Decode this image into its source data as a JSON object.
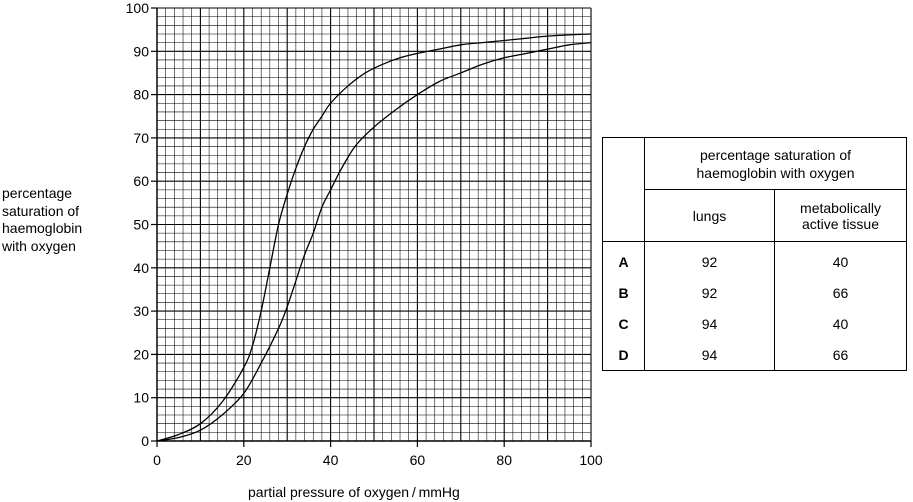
{
  "chart_data": {
    "type": "line",
    "title": "",
    "xlabel": "partial pressure of oxygen / mmHg",
    "ylabel_lines": [
      "percentage",
      "saturation of",
      "haemoglobin",
      "with oxygen"
    ],
    "xlim": [
      0,
      100
    ],
    "ylim": [
      0,
      100
    ],
    "x_ticks": [
      0,
      20,
      40,
      60,
      80,
      100
    ],
    "y_ticks": [
      0,
      10,
      20,
      30,
      40,
      50,
      60,
      70,
      80,
      90,
      100
    ],
    "grid": true,
    "minor_grid_step": 2,
    "series": [
      {
        "x": [
          0,
          5,
          10,
          15,
          20,
          22,
          24,
          26,
          28,
          30,
          32,
          34,
          36,
          38,
          40,
          44,
          48,
          52,
          56,
          60,
          65,
          70,
          75,
          80,
          85,
          90,
          95,
          100
        ],
        "y": [
          0,
          1.5,
          4,
          9,
          17,
          22,
          30,
          40,
          50,
          57,
          63,
          68,
          72,
          75,
          78,
          82,
          85,
          87,
          88.5,
          89.5,
          90.5,
          91.5,
          92,
          92.5,
          93,
          93.5,
          93.8,
          94
        ]
      },
      {
        "x": [
          0,
          5,
          10,
          15,
          20,
          24,
          28,
          30,
          32,
          34,
          36,
          38,
          40,
          42,
          44,
          46,
          50,
          55,
          60,
          65,
          70,
          75,
          80,
          85,
          90,
          95,
          100
        ],
        "y": [
          0,
          0.8,
          2.5,
          6,
          11,
          18,
          26,
          31,
          37,
          43,
          48,
          54,
          58,
          62,
          65.5,
          68.5,
          72.5,
          76.5,
          80,
          83,
          85,
          87,
          88.5,
          89.5,
          90.5,
          91.5,
          92
        ]
      }
    ]
  },
  "table": {
    "header_main": [
      "percentage saturation of",
      "haemoglobin with oxygen"
    ],
    "col1_header": "lungs",
    "col2_header": [
      "metabolically",
      "active tissue"
    ],
    "rows": [
      {
        "letter": "A",
        "lungs": "92",
        "tissue": "40"
      },
      {
        "letter": "B",
        "lungs": "92",
        "tissue": "66"
      },
      {
        "letter": "C",
        "lungs": "94",
        "tissue": "40"
      },
      {
        "letter": "D",
        "lungs": "94",
        "tissue": "66"
      }
    ]
  }
}
